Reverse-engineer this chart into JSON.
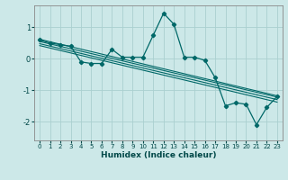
{
  "xlabel": "Humidex (Indice chaleur)",
  "bg_color": "#cce8e8",
  "grid_color": "#aad0d0",
  "line_color": "#006868",
  "xlim": [
    -0.5,
    23.5
  ],
  "ylim": [
    -2.6,
    1.7
  ],
  "yticks": [
    -2,
    -1,
    0,
    1
  ],
  "xticks": [
    0,
    1,
    2,
    3,
    4,
    5,
    6,
    7,
    8,
    9,
    10,
    11,
    12,
    13,
    14,
    15,
    16,
    17,
    18,
    19,
    20,
    21,
    22,
    23
  ],
  "main_series_x": [
    0,
    1,
    2,
    3,
    4,
    5,
    6,
    7,
    8,
    9,
    10,
    11,
    12,
    13,
    14,
    15,
    16,
    17,
    18,
    19,
    20,
    21,
    22,
    23
  ],
  "main_series_y": [
    0.6,
    0.5,
    0.45,
    0.4,
    -0.1,
    -0.15,
    -0.15,
    0.3,
    0.05,
    0.05,
    0.05,
    0.75,
    1.45,
    1.1,
    0.05,
    0.05,
    -0.05,
    -0.6,
    -1.5,
    -1.4,
    -1.45,
    -2.1,
    -1.55,
    -1.2
  ],
  "reg_lines": [
    {
      "x0": 0,
      "y0": 0.62,
      "x1": 23,
      "y1": -1.18
    },
    {
      "x0": 0,
      "y0": 0.55,
      "x1": 23,
      "y1": -1.22
    },
    {
      "x0": 0,
      "y0": 0.48,
      "x1": 23,
      "y1": -1.3
    },
    {
      "x0": 0,
      "y0": 0.42,
      "x1": 23,
      "y1": -1.38
    }
  ]
}
